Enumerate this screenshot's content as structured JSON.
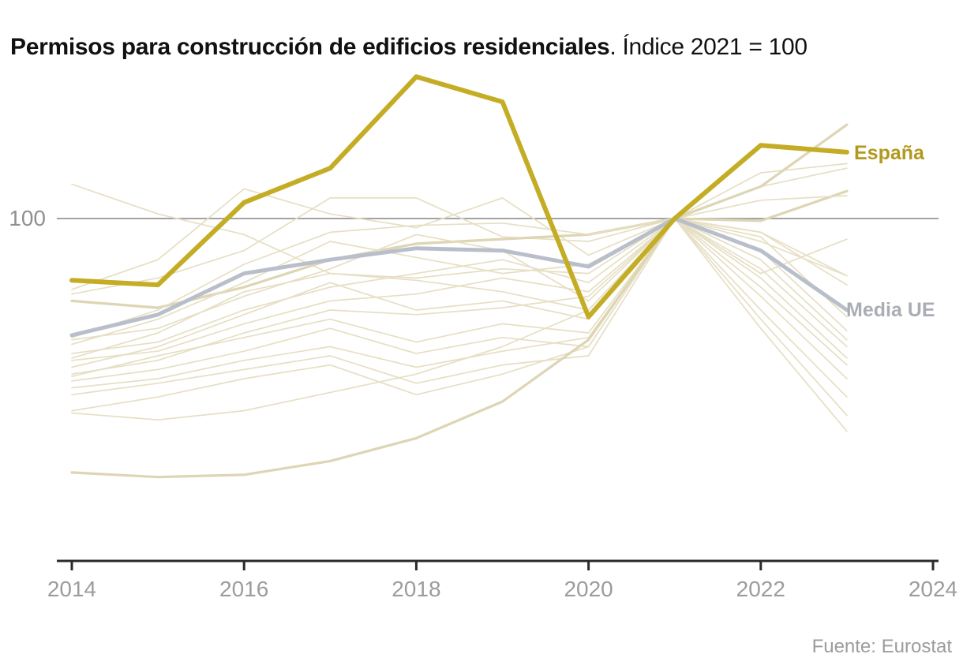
{
  "title": {
    "main": "Permisos para construcción de edificios residenciales",
    "suffix": ". Índice 2021 = 100"
  },
  "source": "Fuente: Eurostat",
  "y_axis": {
    "reference_label": "100"
  },
  "x_axis": {
    "tick_labels": [
      "2014",
      "2016",
      "2018",
      "2020",
      "2022",
      "2024"
    ],
    "tick_years": [
      2014,
      2016,
      2018,
      2020,
      2022,
      2024
    ]
  },
  "line_labels": {
    "spain": "España",
    "eu_mean": "Media UE"
  },
  "colors": {
    "spain_line": "#c4ad25",
    "spain_label": "#b2991d",
    "eu_mean_line": "#b9bfca",
    "eu_mean_label": "#a9aeb5",
    "background_line": "#e6dfc4",
    "background_line_thick": "#ddd5b3",
    "gridline": "#a3a3a3",
    "axis": "#2a2a2a",
    "tick_text": "#9b9c9d"
  },
  "chart_data": {
    "type": "line",
    "x": [
      2014,
      2015,
      2016,
      2017,
      2018,
      2019,
      2020,
      2021,
      2022,
      2023
    ],
    "x_axis_range": [
      2014,
      2024
    ],
    "reference_line_y": 100,
    "index_note": "Índice 2021 = 100",
    "series": [
      {
        "name": "España",
        "role": "spain",
        "values": [
          86.5,
          85.5,
          103.5,
          111,
          131,
          125.5,
          78.5,
          100,
          116,
          114.5
        ]
      },
      {
        "name": "Media UE",
        "role": "eu_mean",
        "values": [
          74.5,
          79,
          88,
          91,
          93.5,
          93,
          89.5,
          100,
          93,
          80
        ]
      }
    ],
    "background_series": [
      {
        "thick": false,
        "values": [
          107.5,
          101,
          96.5,
          88,
          87,
          89,
          88,
          100,
          95,
          87.5
        ]
      },
      {
        "thick": false,
        "values": [
          84.5,
          91,
          106.5,
          101,
          98,
          104.5,
          92,
          100,
          107,
          111
        ]
      },
      {
        "thick": false,
        "values": [
          83.5,
          87,
          93,
          104.5,
          104.5,
          96,
          95,
          100,
          110,
          112
        ]
      },
      {
        "thick": true,
        "values": [
          82,
          80.5,
          85,
          91,
          94.5,
          95.5,
          96.5,
          100,
          99.5,
          106
        ]
      },
      {
        "thick": false,
        "values": [
          74,
          80,
          90,
          97,
          98.5,
          99,
          96.5,
          100,
          104,
          105
        ]
      },
      {
        "thick": false,
        "values": [
          73.5,
          76,
          83,
          89,
          96.5,
          93,
          82,
          100,
          97,
          85.5
        ]
      },
      {
        "thick": false,
        "values": [
          72.5,
          78,
          86,
          95,
          91.5,
          88,
          90,
          100,
          96,
          78.5
        ]
      },
      {
        "thick": false,
        "values": [
          70.5,
          73,
          80,
          85,
          88,
          91,
          86,
          100,
          93,
          75.5
        ]
      },
      {
        "thick": false,
        "values": [
          69.5,
          75,
          84,
          88,
          86.5,
          84,
          80,
          100,
          91,
          73.5
        ]
      },
      {
        "thick": false,
        "values": [
          69,
          71,
          77,
          82,
          83.5,
          87,
          84,
          100,
          89,
          72
        ]
      },
      {
        "thick": false,
        "values": [
          67.5,
          72,
          79,
          86,
          80,
          82,
          78,
          100,
          87,
          69.5
        ]
      },
      {
        "thick": false,
        "values": [
          66,
          69,
          75,
          80,
          79,
          80.5,
          83,
          100,
          85,
          68
        ]
      },
      {
        "thick": false,
        "values": [
          65.5,
          70,
          74,
          78,
          73,
          77,
          75,
          100,
          83,
          65
        ]
      },
      {
        "thick": false,
        "values": [
          64.5,
          67,
          71,
          76,
          70.5,
          74,
          72,
          100,
          80,
          61
        ]
      },
      {
        "thick": false,
        "values": [
          63,
          65,
          69,
          72,
          67.5,
          71,
          74,
          100,
          78,
          57
        ]
      },
      {
        "thick": false,
        "values": [
          61.5,
          64,
          67,
          70,
          64,
          68,
          70,
          100,
          76,
          53.5
        ]
      },
      {
        "thick": false,
        "values": [
          58,
          61,
          65,
          68,
          61.5,
          66,
          72,
          100,
          88,
          95.5
        ]
      },
      {
        "thick": false,
        "values": [
          57.5,
          56,
          58,
          62,
          66,
          72,
          80,
          100,
          97,
          87.5
        ]
      },
      {
        "thick": true,
        "values": [
          44.5,
          43.5,
          44,
          47,
          52,
          60,
          73.5,
          100,
          107,
          120.5
        ]
      }
    ]
  }
}
